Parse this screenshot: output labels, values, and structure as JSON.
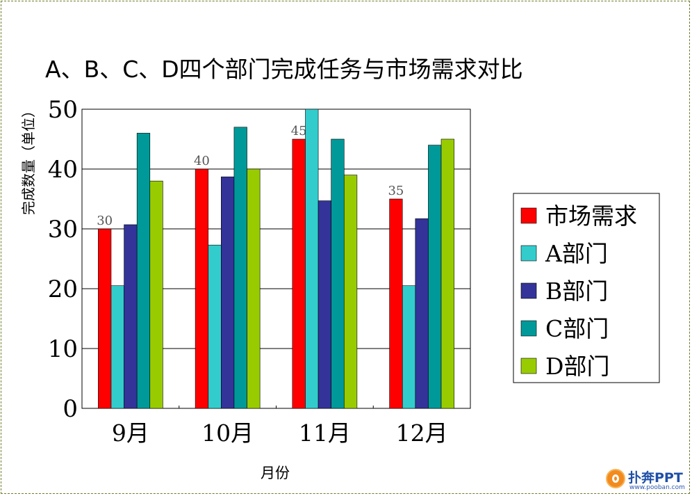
{
  "chart_data": {
    "type": "bar",
    "title": "A、B、C、D四个部门完成任务与市场需求对比",
    "xlabel": "月份",
    "ylabel": "完成数量（单位）",
    "categories": [
      "9月",
      "10月",
      "11月",
      "12月"
    ],
    "ylim": [
      0,
      50
    ],
    "yticks": [
      0,
      10,
      20,
      30,
      40,
      50
    ],
    "grid": true,
    "legend_position": "right",
    "series": [
      {
        "name": "市场需求",
        "color": "#ff0000",
        "values": [
          30,
          40,
          45,
          35
        ],
        "data_labels": [
          "30",
          "40",
          "45",
          "35"
        ]
      },
      {
        "name": "A部门",
        "color": "#33cccc",
        "values": [
          20.5,
          27.3,
          50,
          20.5
        ]
      },
      {
        "name": "B部门",
        "color": "#333399",
        "values": [
          30.7,
          38.7,
          34.7,
          31.7
        ]
      },
      {
        "name": "C部门",
        "color": "#009999",
        "values": [
          46,
          47,
          45,
          44
        ]
      },
      {
        "name": "D部门",
        "color": "#99cc00",
        "values": [
          38,
          40,
          39,
          45
        ]
      }
    ]
  },
  "watermark": {
    "brand": "扑奔PPT",
    "url": "www.pooban.com",
    "icon": "pooban-logo-icon"
  }
}
